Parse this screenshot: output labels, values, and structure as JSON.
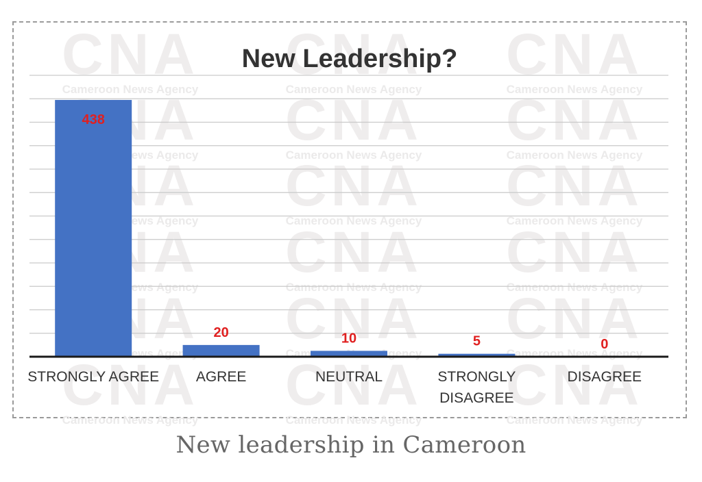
{
  "watermark": {
    "logo": "CNA",
    "text": "Cameroon News Agency"
  },
  "caption": "New leadership in Cameroon",
  "chart_data": {
    "type": "bar",
    "title": "New Leadership?",
    "categories": [
      "STRONGLY AGREE",
      "AGREE",
      "NEUTRAL",
      "STRONGLY DISAGREE",
      "DISAGREE"
    ],
    "category_lines": [
      [
        "STRONGLY AGREE"
      ],
      [
        "AGREE"
      ],
      [
        "NEUTRAL"
      ],
      [
        "STRONGLY",
        "DISAGREE"
      ],
      [
        "DISAGREE"
      ]
    ],
    "values": [
      438,
      20,
      10,
      5,
      0
    ],
    "ylim": [
      0,
      480
    ],
    "grid": true,
    "legend": "none",
    "bar_color": "#4472c4",
    "data_label_color": "#e02020",
    "xlabel": "",
    "ylabel": ""
  }
}
